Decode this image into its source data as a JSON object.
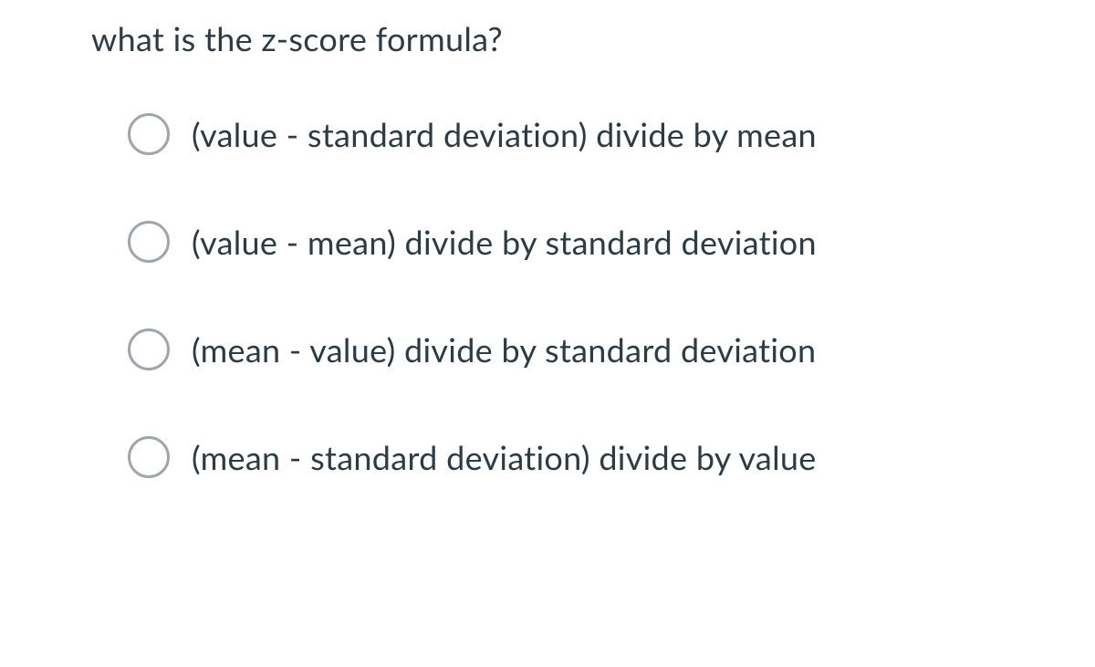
{
  "question": {
    "text": "what is the z-score formula?"
  },
  "options": [
    {
      "label": "(value - standard deviation) divide by mean"
    },
    {
      "label": "(value - mean) divide by standard deviation"
    },
    {
      "label": "(mean - value) divide by standard deviation"
    },
    {
      "label": "(mean - standard deviation) divide by value"
    }
  ]
}
